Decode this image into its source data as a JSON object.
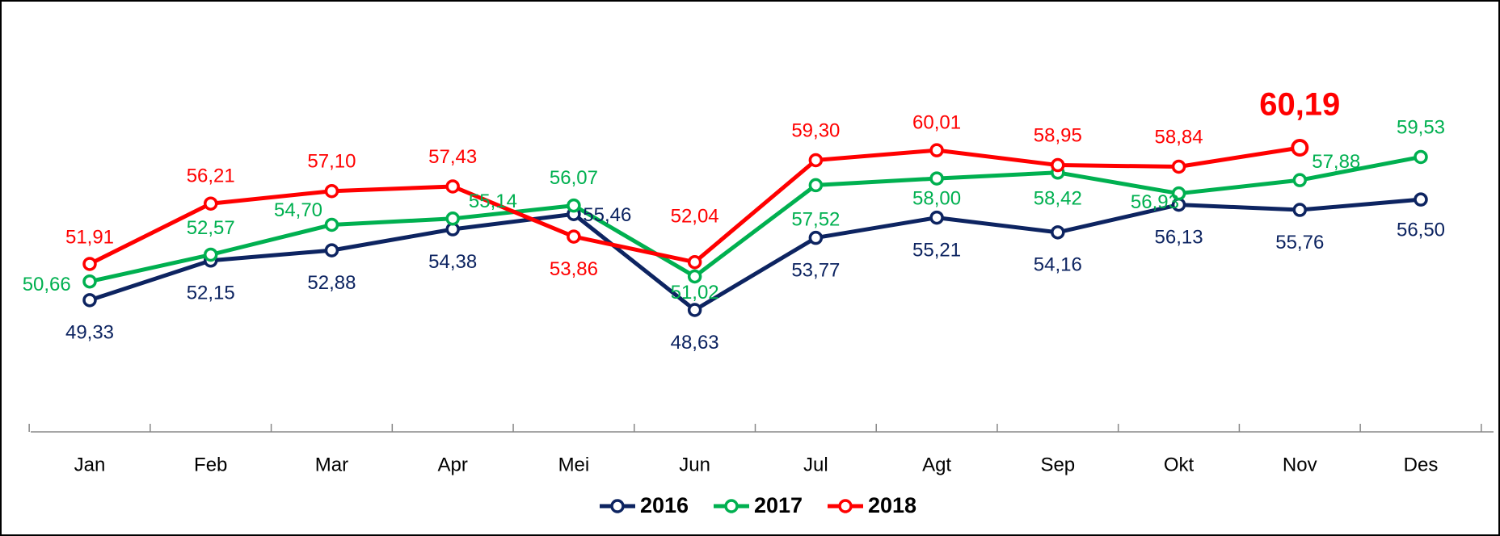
{
  "chart_data": {
    "type": "line",
    "categories": [
      "Jan",
      "Feb",
      "Mar",
      "Apr",
      "Mei",
      "Jun",
      "Jul",
      "Agt",
      "Sep",
      "Okt",
      "Nov",
      "Des"
    ],
    "series": [
      {
        "name": "2016",
        "color": "#0d2461",
        "values": [
          49.33,
          52.15,
          52.88,
          54.38,
          55.46,
          48.63,
          53.77,
          55.21,
          54.16,
          56.13,
          55.76,
          56.5
        ],
        "value_labels": [
          "49,33",
          "52,15",
          "52,88",
          "54,38",
          "55,46",
          "48,63",
          "53,77",
          "55,21",
          "54,16",
          "56,13",
          "55,76",
          "56,50"
        ]
      },
      {
        "name": "2017",
        "color": "#00b050",
        "values": [
          50.66,
          52.57,
          54.7,
          55.14,
          56.07,
          51.02,
          57.52,
          58.0,
          58.42,
          56.93,
          57.88,
          59.53
        ],
        "value_labels": [
          "50,66",
          "52,57",
          "54,70",
          "55,14",
          "56,07",
          "51,02",
          "57,52",
          "58,00",
          "58,42",
          "56,93",
          "57,88",
          "59,53"
        ]
      },
      {
        "name": "2018",
        "color": "#ff0000",
        "values": [
          51.91,
          56.21,
          57.1,
          57.43,
          53.86,
          52.04,
          59.3,
          60.01,
          58.95,
          58.84,
          60.19,
          null
        ],
        "value_labels": [
          "51,91",
          "56,21",
          "57,10",
          "57,43",
          "53,86",
          "52,04",
          "59,30",
          "60,01",
          "58,95",
          "58,84",
          "60,19",
          null
        ]
      }
    ],
    "legend": "bottom"
  }
}
